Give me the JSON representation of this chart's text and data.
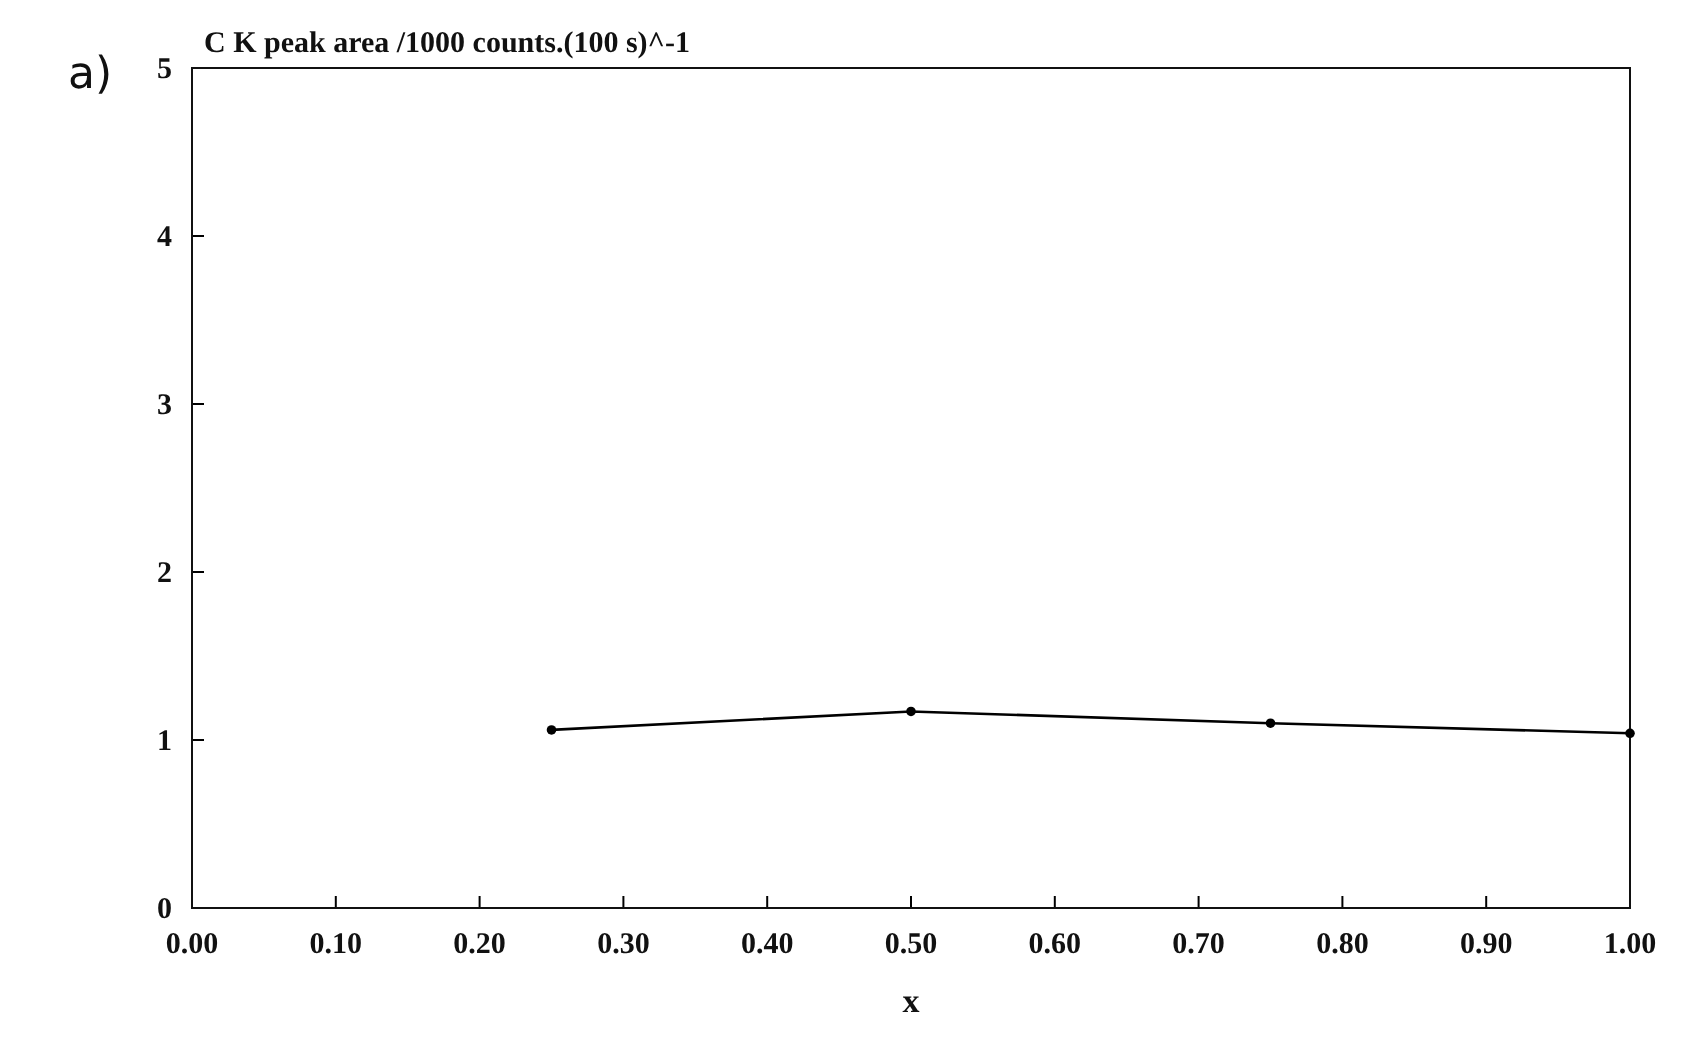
{
  "chart_data": {
    "type": "line",
    "title": "C K peak area /1000 counts.(100 s)^-1",
    "xlabel": "x",
    "annotations": [
      "a)"
    ],
    "x": [
      0.25,
      0.5,
      0.75,
      1.0
    ],
    "series": [
      {
        "color": "#000000",
        "values": [
          1.06,
          1.17,
          1.1,
          1.04
        ]
      }
    ],
    "xlim": [
      0,
      1
    ],
    "xticks": [
      {
        "value": 0,
        "label": "0.00"
      },
      {
        "value": 0.1,
        "label": "0.10"
      },
      {
        "value": 0.2,
        "label": "0.20"
      },
      {
        "value": 0.3,
        "label": "0.30"
      },
      {
        "value": 0.4,
        "label": "0.40"
      },
      {
        "value": 0.5,
        "label": "0.50"
      },
      {
        "value": 0.6,
        "label": "0.60"
      },
      {
        "value": 0.7,
        "label": "0.70"
      },
      {
        "value": 0.8,
        "label": "0.80"
      },
      {
        "value": 0.9,
        "label": "0.90"
      },
      {
        "value": 1,
        "label": "1.00"
      }
    ],
    "ylim": [
      0,
      5
    ],
    "yticks": [
      0,
      1,
      2,
      3,
      4,
      5
    ],
    "grid": false,
    "marker": "circle",
    "line_style": "solid"
  }
}
